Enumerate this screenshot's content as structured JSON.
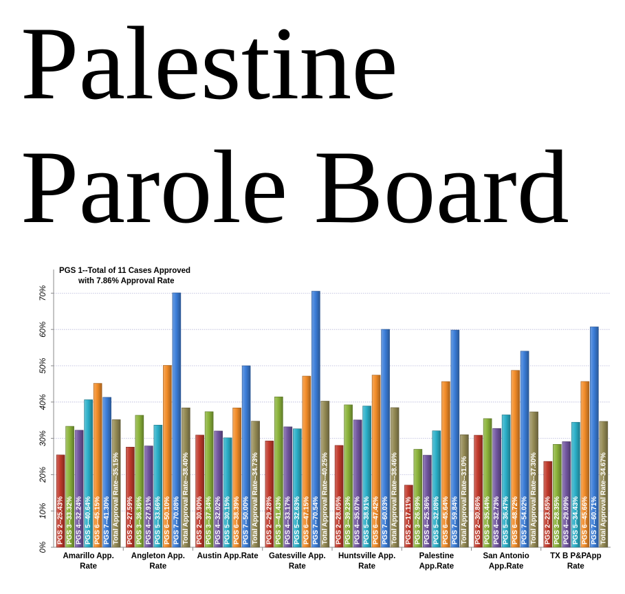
{
  "title_line1": "Palestine",
  "title_line2": "Parole Board",
  "chart_data": {
    "type": "bar",
    "annotation_line1": "PGS 1--Total of 11 Cases Approved",
    "annotation_line2": "with 7.86% Approval Rate",
    "ylim": [
      0,
      75
    ],
    "yticks": [
      0,
      10,
      20,
      30,
      40,
      50,
      60,
      70
    ],
    "ytick_labels": [
      "0%",
      "10%",
      "20%",
      "30%",
      "40%",
      "50%",
      "60%",
      "70%"
    ],
    "grid": true,
    "categories": [
      [
        "Amarillo App.",
        "Rate"
      ],
      [
        "Angleton App.",
        "Rate"
      ],
      [
        "Austin App.Rate"
      ],
      [
        "Gatesville App.",
        "Rate"
      ],
      [
        "Huntsville App.",
        "Rate"
      ],
      [
        "Palestine",
        "App.Rate"
      ],
      [
        "San Antonio",
        "App.Rate"
      ],
      [
        "TX B P&PApp",
        "Rate"
      ]
    ],
    "series": [
      {
        "color": "#C0392B",
        "values": [
          25.43,
          27.59,
          30.9,
          29.28,
          28.05,
          17.11,
          30.86,
          23.65
        ],
        "labels": [
          "PGS 2--25.43%",
          "PGS 2--27.59%",
          "PGS 2--30.90%",
          "PGS 2--29.28%",
          "PGS 2--28.05%",
          "PGS 2--17.11%",
          "PGS 2--30.86%",
          "PGS 2--23.65%"
        ]
      },
      {
        "color": "#8BB33A",
        "values": [
          33.32,
          36.36,
          37.34,
          41.43,
          39.23,
          26.99,
          35.44,
          28.35
        ],
        "labels": [
          "PGS 3--33.32%",
          "PGS 3--36.36%",
          "PGS 3--37.34%",
          "PGS 3--41.43%",
          "PGS 3--39.23%",
          "PGS 3--26.99%",
          "PGS 3--35.44%",
          "PGS 3--28.35%"
        ]
      },
      {
        "color": "#7156A0",
        "values": [
          32.24,
          27.91,
          32.02,
          33.17,
          35.07,
          25.36,
          32.73,
          29.09
        ],
        "labels": [
          "PGS 4--32.24%",
          "PGS 4--27.91%",
          "PGS 4--32.02%",
          "PGS 4--33.17%",
          "PGS 4--35.07%",
          "PGS 4--25.36%",
          "PGS 4--32.73%",
          "PGS 4--29.09%"
        ]
      },
      {
        "color": "#2BAFC8",
        "values": [
          40.64,
          33.66,
          30.15,
          32.63,
          38.91,
          32.08,
          36.47,
          34.43
        ],
        "labels": [
          "PGS 5--40.64%",
          "PGS 5--33.66%",
          "PGS 5--30.15%",
          "PGS 5--32.63%",
          "PGS 5--38.91%",
          "PGS 5--32.08%",
          "PGS 5--36.47%",
          "PGS 5--34.43%"
        ]
      },
      {
        "color": "#F28C28",
        "values": [
          45.15,
          50.1,
          38.39,
          47.15,
          47.42,
          45.64,
          48.72,
          45.66
        ],
        "labels": [
          "PGS 6--45.15%",
          "PGS 6--50.10%",
          "PGS 6--38.39%",
          "PGS 6--47.15%",
          "PGS 6--47.42%",
          "PGS 6--45.64%",
          "PGS 6--48.72%",
          "PGS 6--45.66%"
        ]
      },
      {
        "color": "#3B7DD8",
        "values": [
          41.3,
          70.08,
          50.0,
          70.54,
          60.03,
          59.84,
          54.02,
          60.71
        ],
        "labels": [
          "PGS 7--41.30%",
          "PGS 7--70.08%",
          "PGS 7--50.00%",
          "PGS 7--70.54%",
          "PGS 7--60.03%",
          "PGS 7--59.84%",
          "PGS 7--54.02%",
          "PGS 7--60.71%"
        ]
      },
      {
        "color": "#948A54",
        "values": [
          35.15,
          38.4,
          34.73,
          40.25,
          38.46,
          31.0,
          37.3,
          34.67
        ],
        "labels": [
          "Total Approval Rate--35.15%",
          "Total Approval Rate--38.40%",
          "Total Approval Rate--34.73%",
          "Total Approval Rate--40.25%",
          "Total Approval Rate--38.46%",
          "Total Approval Rate--31.0%",
          "Total Approval Rate--37.30%",
          "Total Approval Rate--34.67%"
        ]
      }
    ]
  }
}
